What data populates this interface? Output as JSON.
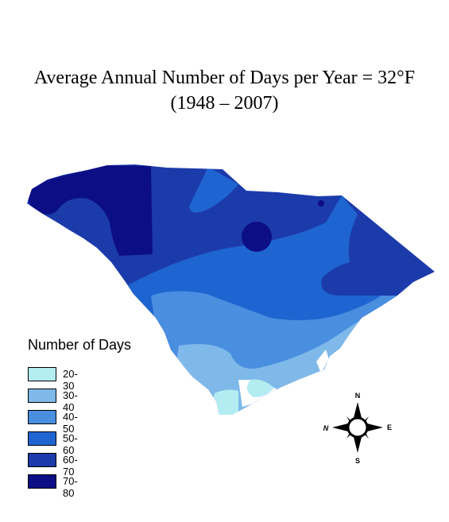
{
  "title": {
    "line1": "Average Annual Number of Days per Year = 32°F",
    "line2": "(1948 – 2007)"
  },
  "legend": {
    "title": "Number of Days",
    "items": [
      {
        "label": "20-30",
        "color": "#b3edf2"
      },
      {
        "label": "30-40",
        "color": "#7eb9ea"
      },
      {
        "label": "40-50",
        "color": "#4a8ee0"
      },
      {
        "label": "50-60",
        "color": "#1f65d1"
      },
      {
        "label": "60-70",
        "color": "#1c3bab"
      },
      {
        "label": "70-80",
        "color": "#0c0e86"
      }
    ]
  },
  "compass": {
    "n": "N",
    "s": "S",
    "e": "E",
    "w": "N"
  }
}
